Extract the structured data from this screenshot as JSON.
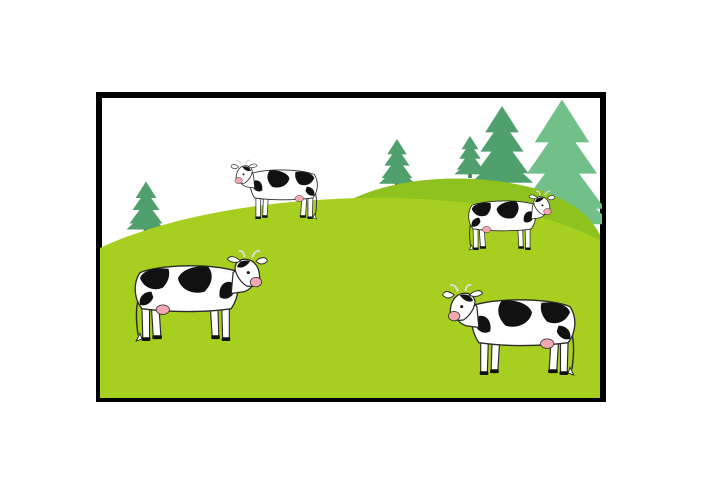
{
  "scene": {
    "colors": {
      "sky": "#ffffff",
      "frame": "#000000",
      "near_hill": "#a6cf1f",
      "far_hill": "#8ec31f",
      "tree_dark": "#4fa06d",
      "tree_light": "#71c08a",
      "cow_black": "#111111",
      "cow_white": "#ffffff",
      "cow_pink": "#f3a7b1",
      "cow_outline": "#2a2a2a"
    },
    "counts": {
      "cows": 4,
      "trees": 5
    },
    "cows": [
      {
        "name": "cow-top-middle",
        "facing": "left"
      },
      {
        "name": "cow-top-right",
        "facing": "right"
      },
      {
        "name": "cow-left",
        "facing": "right"
      },
      {
        "name": "cow-bottom-right",
        "facing": "left"
      }
    ]
  }
}
